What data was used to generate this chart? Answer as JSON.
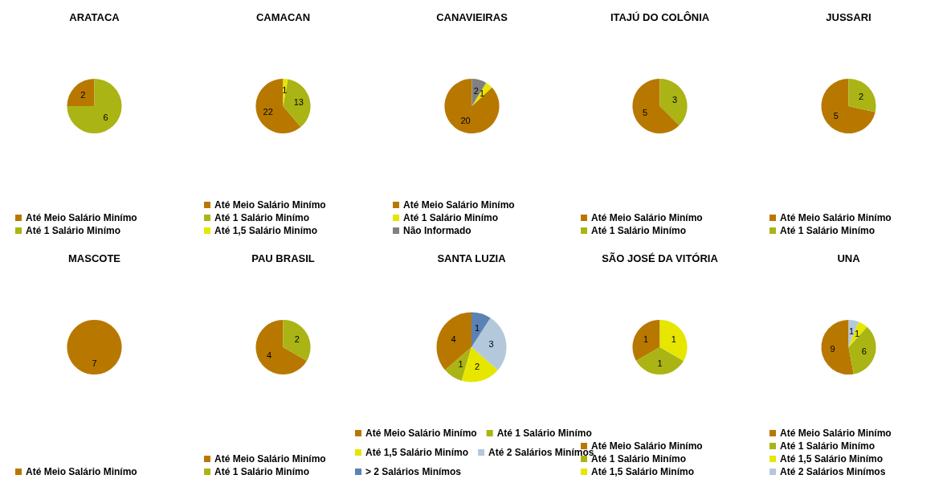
{
  "chart_data": [
    {
      "type": "pie",
      "title": "ARATACA",
      "categories": [
        "Até Meio Salário Minímo",
        "Até 1 Salário Minímo"
      ],
      "values": [
        2,
        6
      ],
      "colors": [
        "#b87800",
        "#aab414"
      ],
      "data_labels": true,
      "legend": "bottom"
    },
    {
      "type": "pie",
      "title": "CAMACAN",
      "categories": [
        "Até Meio Salário Minímo",
        "Até 1 Salário Minímo",
        "Até 1,5 Salário Minímo"
      ],
      "values": [
        22,
        13,
        1
      ],
      "colors": [
        "#b87800",
        "#aab414",
        "#e6e600"
      ],
      "data_labels": true,
      "legend": "bottom"
    },
    {
      "type": "pie",
      "title": "CANAVIEIRAS",
      "categories": [
        "Até Meio Salário Minímo",
        "Até 1 Salário Minímo",
        "Não Informado"
      ],
      "values": [
        20,
        1,
        2
      ],
      "colors": [
        "#b87800",
        "#e6e600",
        "#808080"
      ],
      "data_labels": true,
      "legend": "bottom"
    },
    {
      "type": "pie",
      "title": "ITAJÚ DO COLÔNIA",
      "categories": [
        "Até Meio Salário Minímo",
        "Até 1 Salário Minímo"
      ],
      "values": [
        5,
        3
      ],
      "colors": [
        "#b87800",
        "#aab414"
      ],
      "data_labels": true,
      "legend": "bottom"
    },
    {
      "type": "pie",
      "title": "JUSSARI",
      "categories": [
        "Até Meio Salário Minímo",
        "Até 1 Salário Minímo"
      ],
      "values": [
        5,
        2
      ],
      "colors": [
        "#b87800",
        "#aab414"
      ],
      "data_labels": true,
      "legend": "bottom"
    },
    {
      "type": "pie",
      "title": "MASCOTE",
      "categories": [
        "Até Meio Salário Minímo"
      ],
      "values": [
        7
      ],
      "colors": [
        "#b87800"
      ],
      "data_labels": true,
      "legend": "bottom"
    },
    {
      "type": "pie",
      "title": "PAU BRASIL",
      "categories": [
        "Até Meio Salário Minímo",
        "Até 1 Salário Minímo"
      ],
      "values": [
        4,
        2
      ],
      "colors": [
        "#b87800",
        "#aab414"
      ],
      "data_labels": true,
      "legend": "bottom"
    },
    {
      "type": "pie",
      "title": "SANTA LUZIA",
      "categories": [
        "Até Meio Salário Minímo",
        "Até 1 Salário Minímo",
        "Até 1,5 Salário Minímo",
        "Até 2 Salários Minímos",
        "> 2 Salários Minímos"
      ],
      "values": [
        4,
        1,
        2,
        3,
        1
      ],
      "colors": [
        "#b87800",
        "#aab414",
        "#e6e600",
        "#b4c8dc",
        "#5a82b4"
      ],
      "data_labels": true,
      "legend": "bottom"
    },
    {
      "type": "pie",
      "title": "SÃO JOSÉ DA VITÓRIA",
      "categories": [
        "Até Meio Salário Minímo",
        "Até 1 Salário Minímo",
        "Até 1,5 Salário Minímo"
      ],
      "values": [
        1,
        1,
        1
      ],
      "colors": [
        "#b87800",
        "#aab414",
        "#e6e600"
      ],
      "data_labels": true,
      "legend": "bottom"
    },
    {
      "type": "pie",
      "title": "UNA",
      "categories": [
        "Até Meio Salário Minímo",
        "Até 1 Salário Minímo",
        "Até 1,5 Salário Minímo",
        "Até 2 Salários Minímos"
      ],
      "values": [
        9,
        6,
        1,
        1
      ],
      "colors": [
        "#b87800",
        "#aab414",
        "#e6e600",
        "#b4c8dc"
      ],
      "data_labels": true,
      "legend": "bottom"
    }
  ]
}
